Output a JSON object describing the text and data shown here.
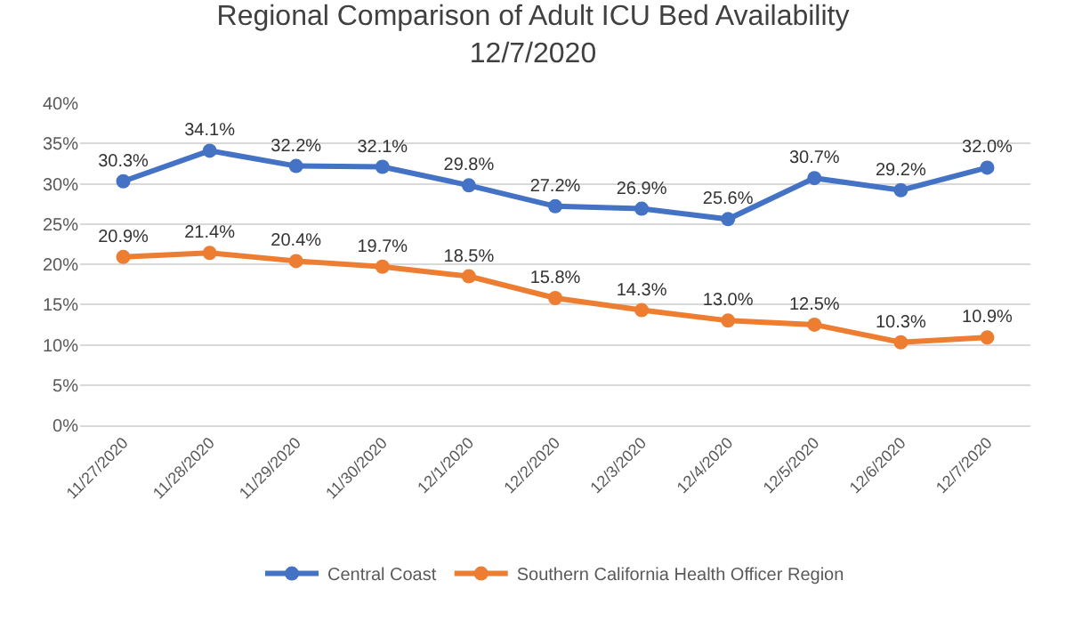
{
  "chart_data": {
    "type": "line",
    "title": "Regional Comparison of Adult ICU Bed Availability\n12/7/2020",
    "categories": [
      "11/27/2020",
      "11/28/2020",
      "11/29/2020",
      "11/30/2020",
      "12/1/2020",
      "12/2/2020",
      "12/3/2020",
      "12/4/2020",
      "12/5/2020",
      "12/6/2020",
      "12/7/2020"
    ],
    "series": [
      {
        "name": "Central Coast",
        "color": "#4472c4",
        "values": [
          30.3,
          34.1,
          32.2,
          32.1,
          29.8,
          27.2,
          26.9,
          25.6,
          30.7,
          29.2,
          32.0
        ],
        "value_labels": [
          "30.3%",
          "34.1%",
          "32.2%",
          "32.1%",
          "29.8%",
          "27.2%",
          "26.9%",
          "25.6%",
          "30.7%",
          "29.2%",
          "32.0%"
        ]
      },
      {
        "name": "Southern California Health Officer Region",
        "color": "#ed7d31",
        "values": [
          20.9,
          21.4,
          20.4,
          19.7,
          18.5,
          15.8,
          14.3,
          13.0,
          12.5,
          10.3,
          10.9
        ],
        "value_labels": [
          "20.9%",
          "21.4%",
          "20.4%",
          "19.7%",
          "18.5%",
          "15.8%",
          "14.3%",
          "13.0%",
          "12.5%",
          "10.3%",
          "10.9%"
        ]
      }
    ],
    "ylim": [
      0,
      40
    ],
    "yticks": [
      {
        "value": 0,
        "label": "0%"
      },
      {
        "value": 5,
        "label": "5%"
      },
      {
        "value": 10,
        "label": "10%"
      },
      {
        "value": 15,
        "label": "15%"
      },
      {
        "value": 20,
        "label": "20%"
      },
      {
        "value": 25,
        "label": "25%"
      },
      {
        "value": 30,
        "label": "30%"
      },
      {
        "value": 35,
        "label": "35%"
      },
      {
        "value": 40,
        "label": "40%"
      }
    ],
    "grid": "y",
    "legend": "bottom",
    "marker": "circle",
    "line_style": "solid"
  }
}
